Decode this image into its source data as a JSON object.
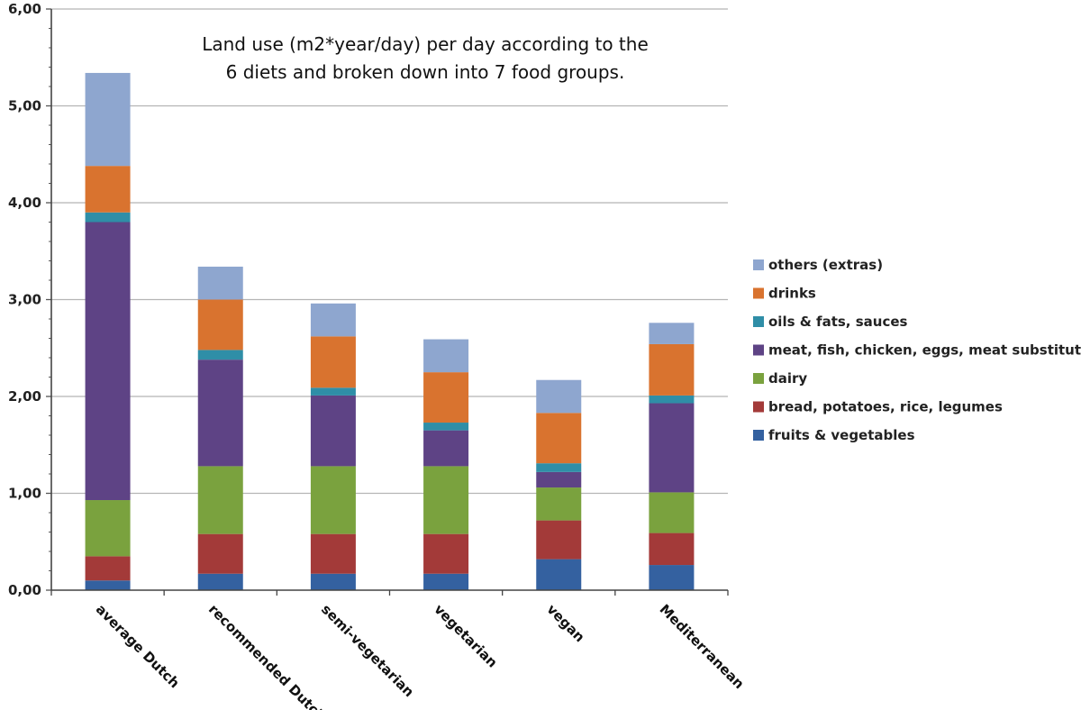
{
  "chart_data": {
    "type": "bar",
    "stacked": true,
    "title": [
      "Land use (m2*year/day) per day according to the",
      "6 diets and broken down into 7 food groups."
    ],
    "xlabel": "",
    "ylabel": "",
    "ylim": [
      0,
      6
    ],
    "yticks": [
      "0,00",
      "1,00",
      "2,00",
      "3,00",
      "4,00",
      "5,00",
      "6,00"
    ],
    "grid": true,
    "legend_position": "right",
    "categories": [
      "average Dutch",
      "recommended Dutch",
      "semi-vegetarian",
      "vegetarian",
      "vegan",
      "Mediterranean"
    ],
    "series": [
      {
        "name": "fruits & vegetables",
        "color": "#3461a0",
        "values": [
          0.1,
          0.17,
          0.17,
          0.17,
          0.32,
          0.26
        ]
      },
      {
        "name": "bread, potatoes, rice, legumes",
        "color": "#a33a39",
        "values": [
          0.25,
          0.41,
          0.41,
          0.41,
          0.4,
          0.33
        ]
      },
      {
        "name": "dairy",
        "color": "#7aa23e",
        "values": [
          0.58,
          0.7,
          0.7,
          0.7,
          0.34,
          0.42
        ]
      },
      {
        "name": "meat, fish, chicken, eggs, meat substitutes",
        "color": "#5e4385",
        "values": [
          2.87,
          1.1,
          0.73,
          0.37,
          0.16,
          0.92
        ]
      },
      {
        "name": "oils & fats, sauces",
        "color": "#2f8ea7",
        "values": [
          0.1,
          0.1,
          0.08,
          0.08,
          0.09,
          0.08
        ]
      },
      {
        "name": "drinks",
        "color": "#d9732f",
        "values": [
          0.48,
          0.52,
          0.53,
          0.52,
          0.52,
          0.53
        ]
      },
      {
        "name": "others (extras)",
        "color": "#8ea6cf",
        "values": [
          0.96,
          0.34,
          0.34,
          0.34,
          0.34,
          0.22
        ]
      }
    ]
  }
}
